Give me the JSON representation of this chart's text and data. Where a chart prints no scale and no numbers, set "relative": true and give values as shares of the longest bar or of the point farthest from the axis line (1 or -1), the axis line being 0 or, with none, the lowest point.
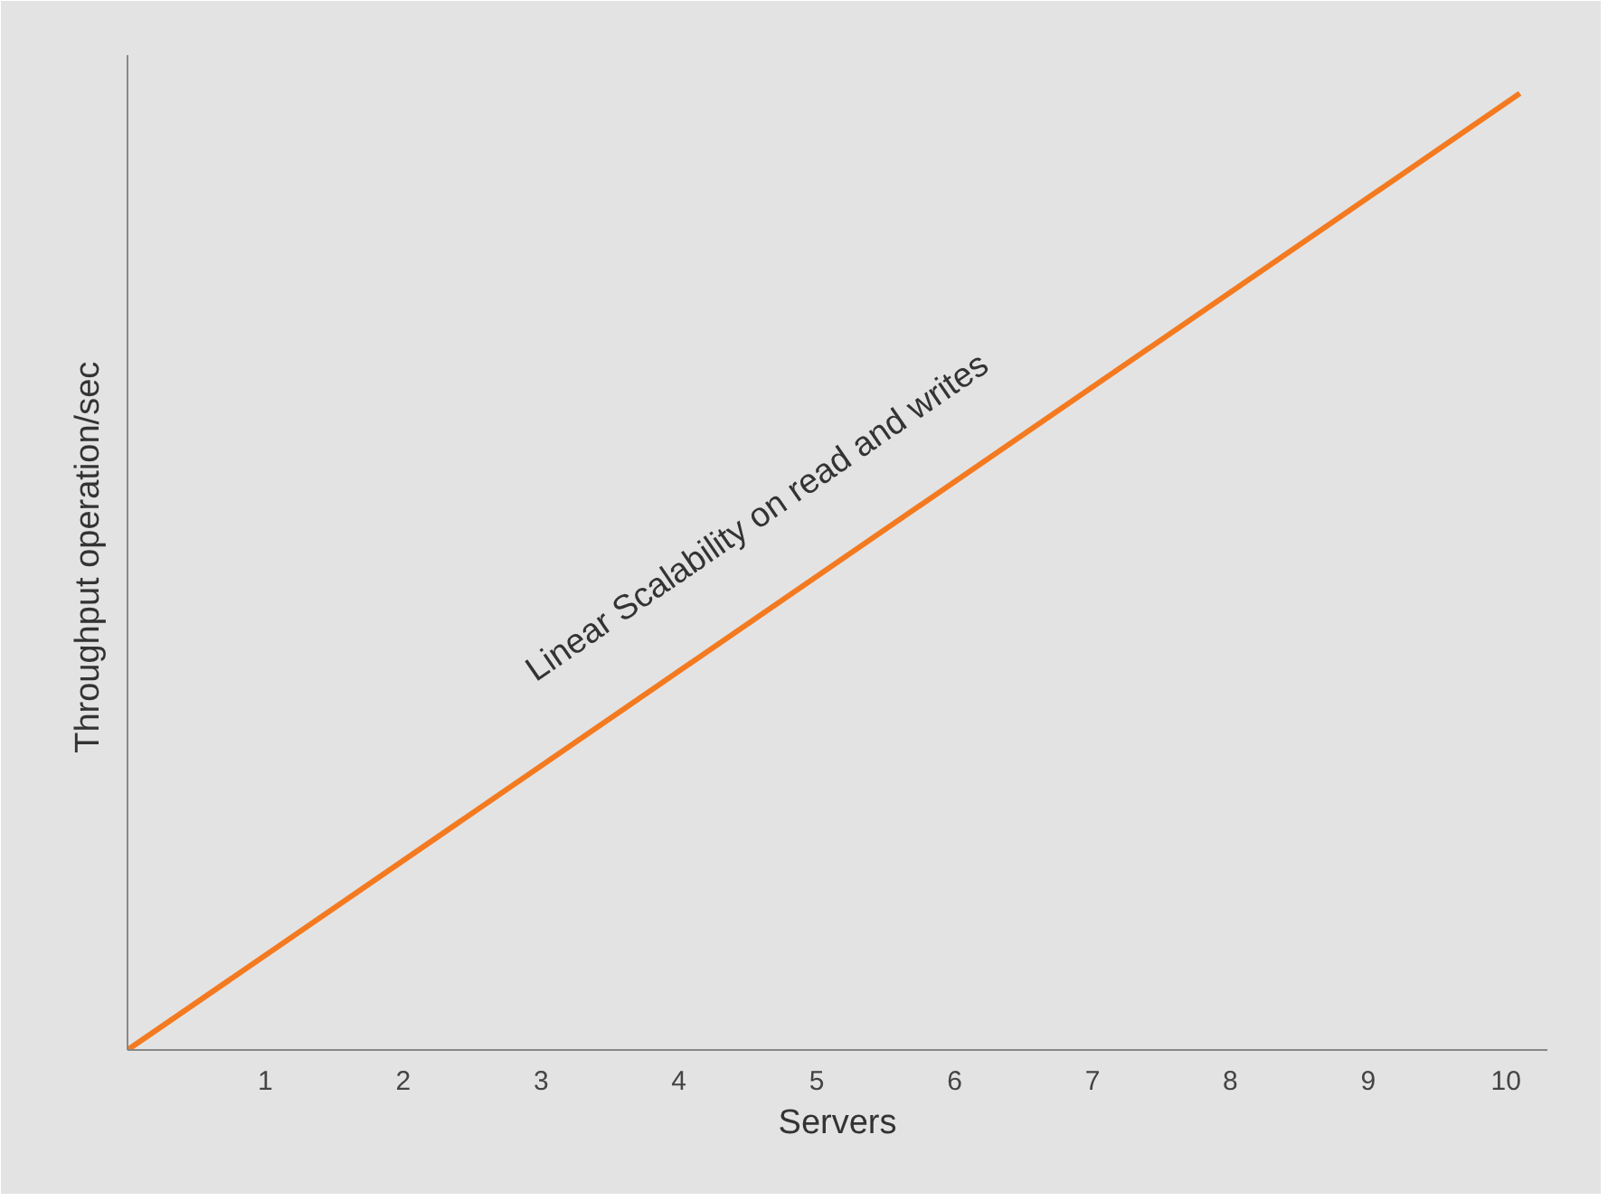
{
  "chart_data": {
    "type": "line",
    "xlabel": "Servers",
    "ylabel": "Throughput  operation/sec",
    "relative": true,
    "xlim": [
      0,
      10.3
    ],
    "xticks": [
      1,
      2,
      3,
      4,
      5,
      6,
      7,
      8,
      9,
      10
    ],
    "tick_labels": "x",
    "annotations": [
      "Linear Scalability on read and writes"
    ],
    "series": [
      {
        "x": [
          0,
          10.1
        ],
        "values": [
          0,
          1
        ],
        "color": "#f47a20"
      }
    ]
  }
}
